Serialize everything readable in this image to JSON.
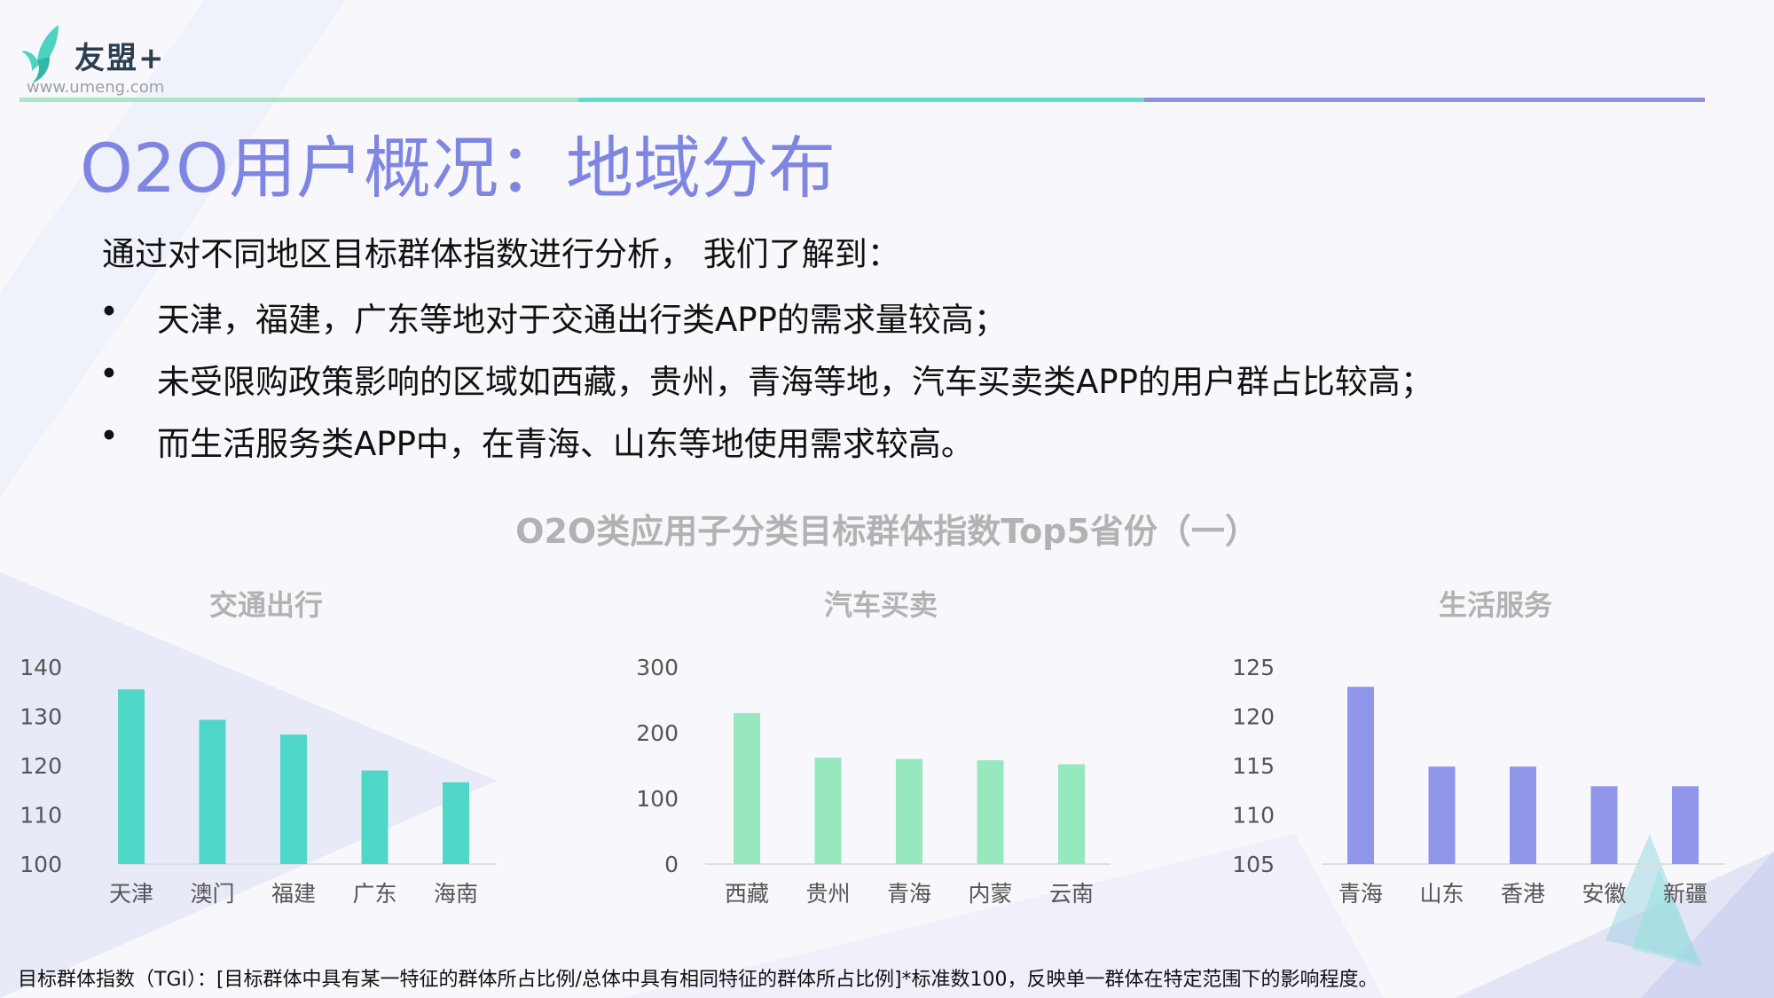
{
  "brand": {
    "name": "友盟+",
    "url": "www.umeng.com"
  },
  "page_title": "O2O用户概况：地域分布",
  "intro": "通过对不同地区目标群体指数进行分析， 我们了解到：",
  "bullets": [
    "天津，福建，广东等地对于交通出行类APP的需求量较高；",
    "未受限购政策影响的区域如西藏，贵州，青海等地，汽车买卖类APP的用户群占比较高；",
    "而生活服务类APP中，在青海、山东等地使用需求较高。"
  ],
  "figure_title": "O2O类应用子分类目标群体指数Top5省份（一）",
  "footnote": "目标群体指数（TGI）：[目标群体中具有某一特征的群体所占比例/总体中具有相同特征的群体所占比例]*标准数100，反映单一群体在特定范围下的影响程度。",
  "colors": {
    "title": "#7f86e2",
    "transport": "#4fd8c8",
    "car": "#97e8bf",
    "life": "#9097ea",
    "axis_text": "#555555",
    "chart_title": "#b2b2b2"
  },
  "chart_data": [
    {
      "type": "bar",
      "title": "交通出行",
      "categories": [
        "天津",
        "澳门",
        "福建",
        "广东",
        "海南"
      ],
      "values": [
        135.5,
        129.3,
        126.3,
        119.0,
        116.6
      ],
      "yticks": [
        100,
        110,
        120,
        130,
        140
      ],
      "ylim": [
        100,
        140
      ],
      "grid": false,
      "color": "#4fd8c8"
    },
    {
      "type": "bar",
      "title": "汽车买卖",
      "categories": [
        "西藏",
        "贵州",
        "青海",
        "内蒙",
        "云南"
      ],
      "values": [
        230,
        162,
        160,
        158,
        152
      ],
      "yticks": [
        0,
        100,
        200,
        300
      ],
      "ylim": [
        0,
        300
      ],
      "grid": false,
      "color": "#97e8bf"
    },
    {
      "type": "bar",
      "title": "生活服务",
      "categories": [
        "青海",
        "山东",
        "香港",
        "安徽",
        "新疆"
      ],
      "values": [
        123.0,
        114.9,
        114.9,
        112.9,
        112.9
      ],
      "yticks": [
        105,
        110,
        115,
        120,
        125
      ],
      "ylim": [
        105,
        125
      ],
      "grid": false,
      "color": "#9097ea"
    }
  ]
}
